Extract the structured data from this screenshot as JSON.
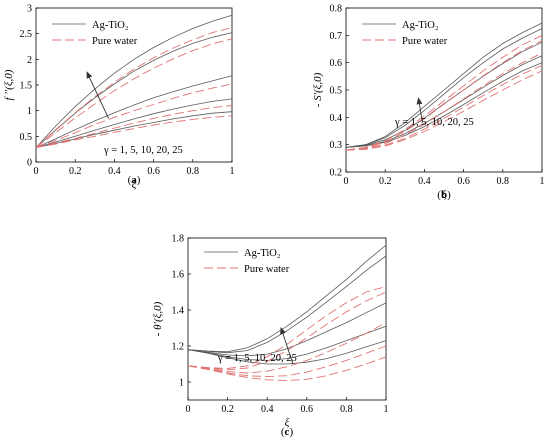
{
  "chart_data": [
    {
      "type": "line",
      "panel": "(a)",
      "caption_left": "(",
      "caption_letter": "a",
      "caption_right": ")",
      "xlabel": "ξ",
      "ylabel": "f ′′(ξ,0)",
      "xlim": [
        0,
        1
      ],
      "ylim": [
        0,
        3
      ],
      "xticks": [
        "0",
        "0.2",
        "0.4",
        "0.6",
        "0.8",
        "1"
      ],
      "yticks": [
        "0",
        "0.5",
        "1",
        "1.5",
        "2",
        "2.5",
        "3"
      ],
      "legend": [
        "Ag-TiO₂",
        "Pure water"
      ],
      "legend_position": "top-left",
      "annotation": "γ = 1, 5, 10, 20, 25",
      "x": [
        0,
        0.1,
        0.2,
        0.3,
        0.4,
        0.5,
        0.6,
        0.7,
        0.8,
        0.9,
        1.0
      ],
      "series": [
        {
          "group": "Ag-TiO₂",
          "values": [
            0.28,
            0.7,
            1.08,
            1.42,
            1.73,
            2.0,
            2.23,
            2.43,
            2.6,
            2.74,
            2.86
          ]
        },
        {
          "group": "Ag-TiO₂",
          "values": [
            0.28,
            0.62,
            0.95,
            1.25,
            1.52,
            1.77,
            1.98,
            2.16,
            2.31,
            2.43,
            2.52
          ]
        },
        {
          "group": "Ag-TiO₂",
          "values": [
            0.28,
            0.45,
            0.63,
            0.8,
            0.96,
            1.11,
            1.25,
            1.37,
            1.48,
            1.58,
            1.68
          ]
        },
        {
          "group": "Ag-TiO₂",
          "values": [
            0.28,
            0.39,
            0.5,
            0.62,
            0.73,
            0.84,
            0.94,
            1.03,
            1.11,
            1.18,
            1.23
          ]
        },
        {
          "group": "Ag-TiO₂",
          "values": [
            0.28,
            0.36,
            0.45,
            0.54,
            0.62,
            0.7,
            0.77,
            0.84,
            0.9,
            0.95,
            0.98
          ]
        },
        {
          "group": "Pure water",
          "values": [
            0.28,
            0.63,
            0.96,
            1.27,
            1.55,
            1.81,
            2.03,
            2.22,
            2.38,
            2.52,
            2.62
          ]
        },
        {
          "group": "Pure water",
          "values": [
            0.28,
            0.57,
            0.86,
            1.13,
            1.39,
            1.62,
            1.83,
            2.01,
            2.17,
            2.3,
            2.4
          ]
        },
        {
          "group": "Pure water",
          "values": [
            0.28,
            0.42,
            0.57,
            0.73,
            0.87,
            1.0,
            1.12,
            1.24,
            1.35,
            1.44,
            1.52
          ]
        },
        {
          "group": "Pure water",
          "values": [
            0.28,
            0.37,
            0.46,
            0.56,
            0.66,
            0.76,
            0.85,
            0.93,
            1.0,
            1.06,
            1.1
          ]
        },
        {
          "group": "Pure water",
          "values": [
            0.28,
            0.35,
            0.43,
            0.5,
            0.58,
            0.65,
            0.72,
            0.78,
            0.83,
            0.87,
            0.9
          ]
        }
      ],
      "arrow": {
        "from": [
          0.37,
          0.85
        ],
        "to": [
          0.26,
          1.75
        ]
      }
    },
    {
      "type": "line",
      "panel": "(b)",
      "caption_left": "(",
      "caption_letter": "b",
      "caption_right": ")",
      "xlabel": "ξ",
      "ylabel": "- S′(ξ,0)",
      "xlim": [
        0,
        1
      ],
      "ylim": [
        0.2,
        0.8
      ],
      "xticks": [
        "0",
        "0.2",
        "0.4",
        "0.6",
        "0.8",
        "1"
      ],
      "yticks": [
        "0.2",
        "0.3",
        "0.4",
        "0.5",
        "0.6",
        "0.7",
        "0.8"
      ],
      "legend": [
        "Ag-TiO₂",
        "Pure water"
      ],
      "legend_position": "top-left",
      "annotation": "γ = 1, 5, 10, 20, 25",
      "x": [
        0,
        0.1,
        0.2,
        0.3,
        0.4,
        0.5,
        0.6,
        0.7,
        0.8,
        0.9,
        1.0
      ],
      "series": [
        {
          "group": "Ag-TiO₂",
          "values": [
            0.29,
            0.3,
            0.33,
            0.38,
            0.44,
            0.5,
            0.56,
            0.62,
            0.67,
            0.71,
            0.745
          ]
        },
        {
          "group": "Ag-TiO₂",
          "values": [
            0.29,
            0.3,
            0.325,
            0.37,
            0.425,
            0.485,
            0.545,
            0.6,
            0.65,
            0.69,
            0.725
          ]
        },
        {
          "group": "Ag-TiO₂",
          "values": [
            0.29,
            0.298,
            0.318,
            0.352,
            0.397,
            0.45,
            0.5,
            0.55,
            0.597,
            0.64,
            0.675
          ]
        },
        {
          "group": "Ag-TiO₂",
          "values": [
            0.29,
            0.296,
            0.312,
            0.34,
            0.378,
            0.42,
            0.465,
            0.51,
            0.553,
            0.593,
            0.625
          ]
        },
        {
          "group": "Ag-TiO₂",
          "values": [
            0.29,
            0.295,
            0.309,
            0.333,
            0.366,
            0.405,
            0.447,
            0.49,
            0.532,
            0.57,
            0.6
          ]
        },
        {
          "group": "Pure water",
          "values": [
            0.28,
            0.29,
            0.315,
            0.355,
            0.405,
            0.46,
            0.515,
            0.57,
            0.62,
            0.665,
            0.7
          ]
        },
        {
          "group": "Pure water",
          "values": [
            0.28,
            0.288,
            0.31,
            0.348,
            0.395,
            0.448,
            0.5,
            0.552,
            0.6,
            0.645,
            0.68
          ]
        },
        {
          "group": "Pure water",
          "values": [
            0.28,
            0.286,
            0.304,
            0.335,
            0.375,
            0.42,
            0.467,
            0.515,
            0.56,
            0.6,
            0.635
          ]
        },
        {
          "group": "Pure water",
          "values": [
            0.28,
            0.284,
            0.298,
            0.323,
            0.357,
            0.396,
            0.437,
            0.48,
            0.52,
            0.558,
            0.59
          ]
        },
        {
          "group": "Pure water",
          "values": [
            0.28,
            0.283,
            0.295,
            0.318,
            0.348,
            0.384,
            0.422,
            0.462,
            0.5,
            0.537,
            0.57
          ]
        }
      ],
      "arrow": {
        "from": [
          0.39,
          0.38
        ],
        "to": [
          0.37,
          0.47
        ]
      }
    },
    {
      "type": "line",
      "panel": "(c)",
      "caption_left": "(",
      "caption_letter": "c",
      "caption_right": ")",
      "xlabel": "ξ",
      "ylabel": "- θ′(ξ,0)",
      "xlim": [
        0,
        1
      ],
      "ylim": [
        0.9,
        1.8
      ],
      "xticks": [
        "0",
        "0.2",
        "0.4",
        "0.6",
        "0.8",
        "1"
      ],
      "yticks": [
        "1",
        "1.2",
        "1.4",
        "1.6",
        "1.8"
      ],
      "legend": [
        "Ag-TiO₂",
        "Pure water"
      ],
      "legend_position": "top-left",
      "annotation": "γ = 1, 5, 10, 20, 25",
      "x": [
        0,
        0.1,
        0.2,
        0.3,
        0.4,
        0.5,
        0.6,
        0.7,
        0.8,
        0.9,
        1.0
      ],
      "series": [
        {
          "group": "Ag-TiO₂",
          "values": [
            1.18,
            1.172,
            1.168,
            1.19,
            1.24,
            1.31,
            1.39,
            1.48,
            1.57,
            1.67,
            1.76
          ]
        },
        {
          "group": "Ag-TiO₂",
          "values": [
            1.18,
            1.17,
            1.162,
            1.175,
            1.22,
            1.285,
            1.36,
            1.445,
            1.53,
            1.62,
            1.7
          ]
        },
        {
          "group": "Ag-TiO₂",
          "values": [
            1.18,
            1.165,
            1.15,
            1.145,
            1.155,
            1.185,
            1.23,
            1.28,
            1.33,
            1.385,
            1.44
          ]
        },
        {
          "group": "Ag-TiO₂",
          "values": [
            1.18,
            1.162,
            1.14,
            1.125,
            1.12,
            1.13,
            1.155,
            1.19,
            1.23,
            1.27,
            1.31
          ]
        },
        {
          "group": "Ag-TiO₂",
          "values": [
            1.18,
            1.16,
            1.135,
            1.112,
            1.1,
            1.1,
            1.11,
            1.13,
            1.16,
            1.195,
            1.23
          ]
        },
        {
          "group": "Pure water",
          "values": [
            1.09,
            1.08,
            1.075,
            1.09,
            1.14,
            1.21,
            1.29,
            1.37,
            1.44,
            1.5,
            1.53
          ]
        },
        {
          "group": "Pure water",
          "values": [
            1.09,
            1.078,
            1.068,
            1.078,
            1.115,
            1.175,
            1.245,
            1.32,
            1.39,
            1.45,
            1.5
          ]
        },
        {
          "group": "Pure water",
          "values": [
            1.09,
            1.075,
            1.058,
            1.05,
            1.06,
            1.085,
            1.12,
            1.165,
            1.215,
            1.27,
            1.33
          ]
        },
        {
          "group": "Pure water",
          "values": [
            1.09,
            1.073,
            1.05,
            1.035,
            1.03,
            1.035,
            1.055,
            1.085,
            1.12,
            1.16,
            1.2
          ]
        },
        {
          "group": "Pure water",
          "values": [
            1.09,
            1.07,
            1.045,
            1.025,
            1.012,
            1.008,
            1.015,
            1.035,
            1.065,
            1.1,
            1.14
          ]
        }
      ],
      "arrow": {
        "from": [
          0.53,
          1.1
        ],
        "to": [
          0.47,
          1.3
        ]
      }
    }
  ],
  "colors": {
    "ag_tio2": "#5a5a5a",
    "pure_water": "#e37373",
    "axis": "#000000",
    "arrow": "#333333"
  }
}
